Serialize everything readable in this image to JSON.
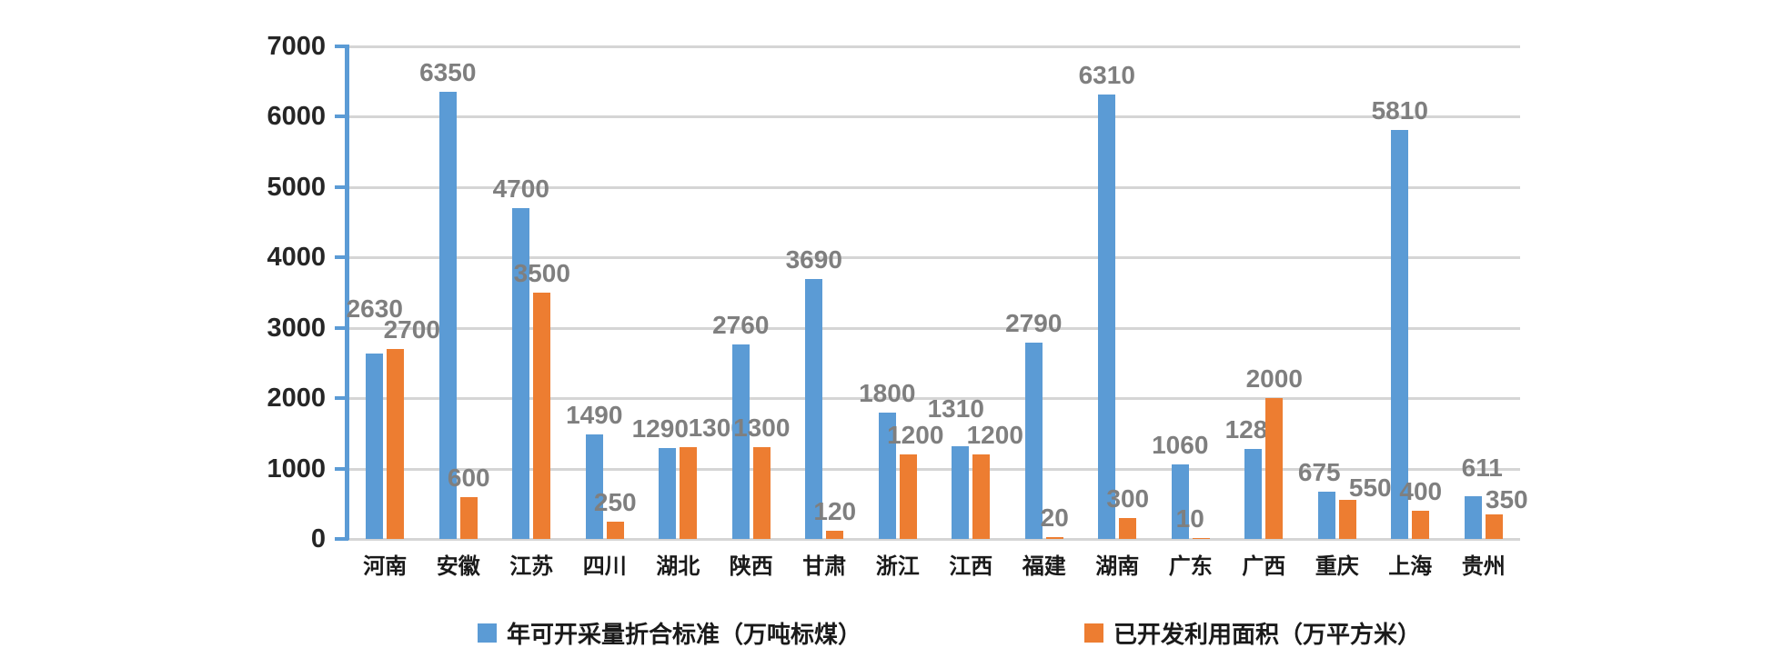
{
  "chart_data": {
    "type": "bar",
    "title": "",
    "categories": [
      "河南",
      "安徽",
      "江苏",
      "四川",
      "湖北",
      "陕西",
      "甘肃",
      "浙江",
      "江西",
      "福建",
      "湖南",
      "广东",
      "广西",
      "重庆",
      "上海",
      "贵州"
    ],
    "series": [
      {
        "name": "年可开采量折合标准（万吨标煤）",
        "color": "#5B9BD5",
        "values": [
          2630,
          6350,
          4700,
          1490,
          1290,
          2760,
          3690,
          1800,
          1310,
          2790,
          6310,
          1060,
          1280,
          675,
          5810,
          611
        ]
      },
      {
        "name": "已开发利用面积（万平方米）",
        "color": "#ED7D31",
        "values": [
          2700,
          600,
          3500,
          250,
          1300,
          1300,
          120,
          1200,
          1200,
          20,
          300,
          10,
          2000,
          550,
          400,
          350
        ]
      }
    ],
    "y_axis": {
      "min": 0,
      "max": 7000,
      "step": 1000,
      "tick_labels": [
        "0",
        "1000",
        "2000",
        "3000",
        "4000",
        "5000",
        "6000",
        "7000"
      ]
    },
    "x_axis_label": "",
    "y_axis_label": "",
    "grid": true,
    "legend_position": "bottom",
    "data_labels": true,
    "colors": {
      "axis": "#5B9BD5",
      "gridline": "#D5D5D5",
      "data_label": "#7F7F7F",
      "tick_label": "#262626",
      "background": "#FFFFFF"
    },
    "label_offsets": {
      "blue_dx": [
        0,
        0,
        0,
        0,
        -8,
        0,
        0,
        0,
        -5,
        0,
        0,
        0,
        0,
        -8,
        0,
        10
      ],
      "blue_dy": [
        -28,
        0,
        0,
        0,
        0,
        0,
        0,
        0,
        -20,
        0,
        0,
        0,
        0,
        0,
        0,
        -10
      ],
      "orange_dx": [
        18,
        0,
        0,
        0,
        31,
        0,
        0,
        8,
        15,
        0,
        0,
        -12,
        0,
        25,
        0,
        14
      ],
      "orange_dy": [
        0,
        0,
        0,
        0,
        0,
        0,
        0,
        0,
        0,
        0,
        0,
        0,
        0,
        8,
        0,
        5
      ]
    }
  }
}
